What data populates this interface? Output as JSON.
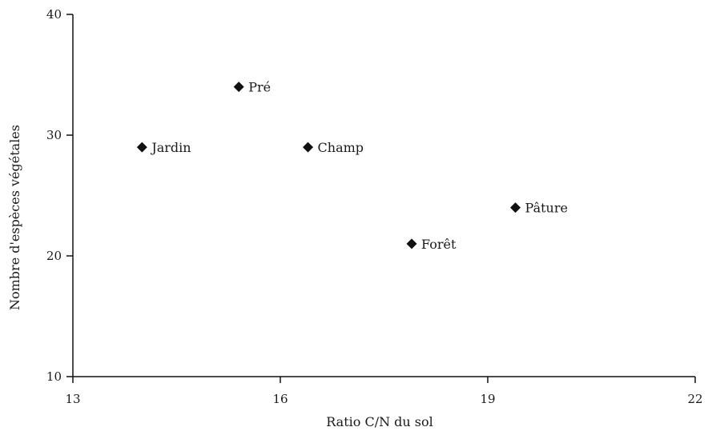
{
  "chart_data": {
    "type": "scatter",
    "title": "",
    "xlabel": "Ratio C/N du sol",
    "ylabel": "Nombre d'espèces végétales",
    "xlim": [
      13,
      22
    ],
    "ylim": [
      10,
      40
    ],
    "xticks": [
      13,
      16,
      19,
      22
    ],
    "yticks": [
      10,
      20,
      30,
      40
    ],
    "grid": false,
    "legend": "none",
    "marker": "diamond",
    "marker_color": "#111111",
    "points": [
      {
        "label": "Jardin",
        "x": 14.0,
        "y": 29
      },
      {
        "label": "Pré",
        "x": 15.4,
        "y": 34
      },
      {
        "label": "Champ",
        "x": 16.4,
        "y": 29
      },
      {
        "label": "Forêt",
        "x": 17.9,
        "y": 21
      },
      {
        "label": "Pâture",
        "x": 19.4,
        "y": 24
      }
    ]
  }
}
